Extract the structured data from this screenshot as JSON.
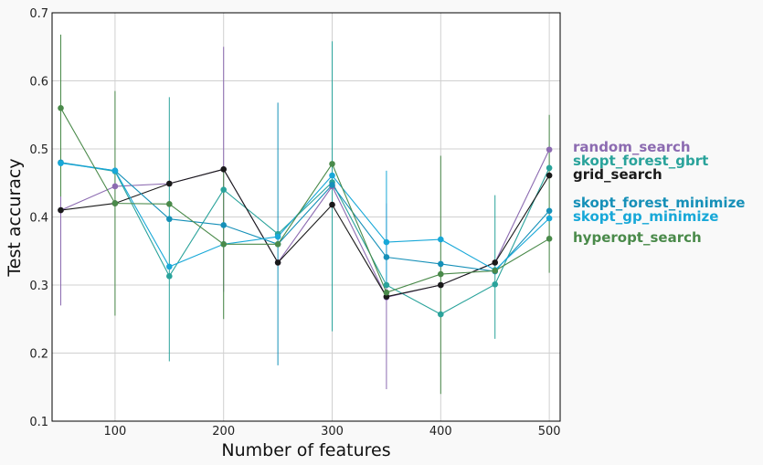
{
  "chart_data": {
    "type": "line",
    "title": "",
    "xlabel": "Number of features",
    "ylabel": "Test accuracy",
    "xlim": [
      42,
      510
    ],
    "ylim": [
      0.1,
      0.7
    ],
    "xticks": [
      100,
      200,
      300,
      400,
      500
    ],
    "yticks": [
      0.1,
      0.2,
      0.3,
      0.4,
      0.5,
      0.6,
      0.7
    ],
    "grid": true,
    "legend_placement": "right",
    "x": [
      50,
      100,
      150,
      200,
      250,
      300,
      350,
      400,
      450,
      500
    ],
    "series": [
      {
        "name": "random_search",
        "color": "#8c6bb1",
        "values": [
          0.41,
          0.445,
          0.449,
          0.47,
          0.333,
          0.445,
          0.282,
          0.3,
          0.333,
          0.499
        ],
        "err_low": [
          0.27,
          null,
          null,
          0.29,
          null,
          null,
          0.147,
          null,
          null,
          null
        ],
        "err_high": [
          0.53,
          null,
          null,
          0.65,
          null,
          null,
          0.42,
          null,
          null,
          null
        ]
      },
      {
        "name": "skopt_forest_gbrt",
        "color": "#2aa39b",
        "values": [
          0.48,
          0.467,
          0.313,
          0.44,
          0.375,
          0.451,
          0.3,
          0.257,
          0.301,
          0.472
        ],
        "err_low": [
          null,
          null,
          0.188,
          null,
          null,
          0.232,
          null,
          null,
          0.221,
          null
        ],
        "err_high": [
          null,
          null,
          0.576,
          null,
          null,
          0.658,
          null,
          null,
          0.432,
          null
        ]
      },
      {
        "name": "grid_search",
        "color": "#1a1a1a",
        "values": [
          0.41,
          0.42,
          0.449,
          0.47,
          0.333,
          0.418,
          0.283,
          0.3,
          0.333,
          0.461
        ],
        "err_low": [
          null,
          null,
          null,
          null,
          null,
          null,
          null,
          null,
          null,
          null
        ],
        "err_high": [
          null,
          null,
          null,
          null,
          null,
          null,
          null,
          null,
          null,
          null
        ]
      },
      {
        "name": "skopt_forest_minimize",
        "color": "#1690b8",
        "values": [
          0.48,
          0.468,
          0.397,
          0.388,
          0.36,
          0.447,
          0.341,
          0.331,
          0.32,
          0.409
        ],
        "err_low": [
          null,
          null,
          null,
          null,
          0.182,
          null,
          null,
          null,
          null,
          null
        ],
        "err_high": [
          null,
          null,
          null,
          null,
          0.568,
          null,
          null,
          null,
          null,
          null
        ]
      },
      {
        "name": "skopt_gp_minimize",
        "color": "#18a8d8",
        "values": [
          0.479,
          0.468,
          0.327,
          0.36,
          0.371,
          0.461,
          0.363,
          0.367,
          0.322,
          0.398
        ],
        "err_low": [
          null,
          null,
          null,
          null,
          null,
          null,
          0.3,
          null,
          null,
          null
        ],
        "err_high": [
          null,
          null,
          null,
          null,
          null,
          null,
          0.468,
          null,
          null,
          null
        ]
      },
      {
        "name": "hyperopt_search",
        "color": "#4a8a4a",
        "values": [
          0.56,
          0.42,
          0.419,
          0.36,
          0.36,
          0.478,
          0.289,
          0.316,
          0.321,
          0.368
        ],
        "err_low": [
          0.43,
          0.255,
          null,
          0.25,
          null,
          null,
          null,
          0.14,
          null,
          0.318
        ],
        "err_high": [
          0.668,
          0.585,
          null,
          0.47,
          null,
          null,
          null,
          0.49,
          null,
          0.55
        ]
      }
    ],
    "legend": [
      {
        "name": "random_search",
        "color": "#8c6bb1"
      },
      {
        "name": "skopt_forest_gbrt",
        "color": "#2aa39b"
      },
      {
        "name": "grid_search",
        "color": "#1a1a1a"
      },
      {
        "name": "skopt_forest_minimize",
        "color": "#1690b8"
      },
      {
        "name": "skopt_gp_minimize",
        "color": "#18a8d8"
      },
      {
        "name": "hyperopt_search",
        "color": "#4a8a4a"
      }
    ]
  }
}
